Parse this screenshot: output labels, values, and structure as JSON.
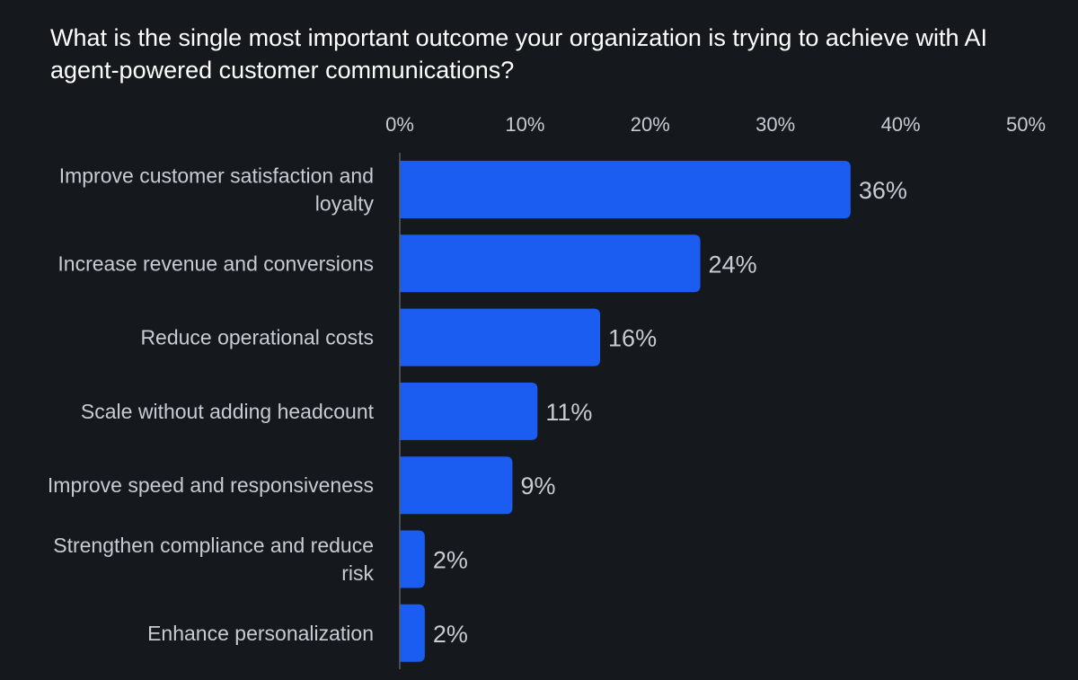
{
  "chart_data": {
    "type": "bar",
    "orientation": "horizontal",
    "title": "What is the single most important outcome your organization is trying to achieve with AI agent-powered customer communications?",
    "categories": [
      [
        "Improve customer satisfaction and",
        "loyalty"
      ],
      [
        "Increase revenue and conversions"
      ],
      [
        "Reduce operational costs"
      ],
      [
        "Scale without adding headcount"
      ],
      [
        "Improve speed and responsiveness"
      ],
      [
        "Strengthen compliance and reduce",
        "risk"
      ],
      [
        "Enhance personalization"
      ]
    ],
    "values": [
      36,
      24,
      16,
      11,
      9,
      2,
      2
    ],
    "value_labels": [
      "36%",
      "24%",
      "16%",
      "11%",
      "9%",
      "2%",
      "2%"
    ],
    "xlim": [
      0,
      50
    ],
    "x_ticks": [
      0,
      10,
      20,
      30,
      40,
      50
    ],
    "x_tick_labels": [
      "0%",
      "10%",
      "20%",
      "30%",
      "40%",
      "50%"
    ],
    "x_axis_position": "top",
    "grid": false,
    "colors": {
      "bar": "#1a5df0",
      "background": "#15181d",
      "title": "#ffffff",
      "label": "#c8ccd2",
      "axis": "#5a5f66"
    }
  }
}
